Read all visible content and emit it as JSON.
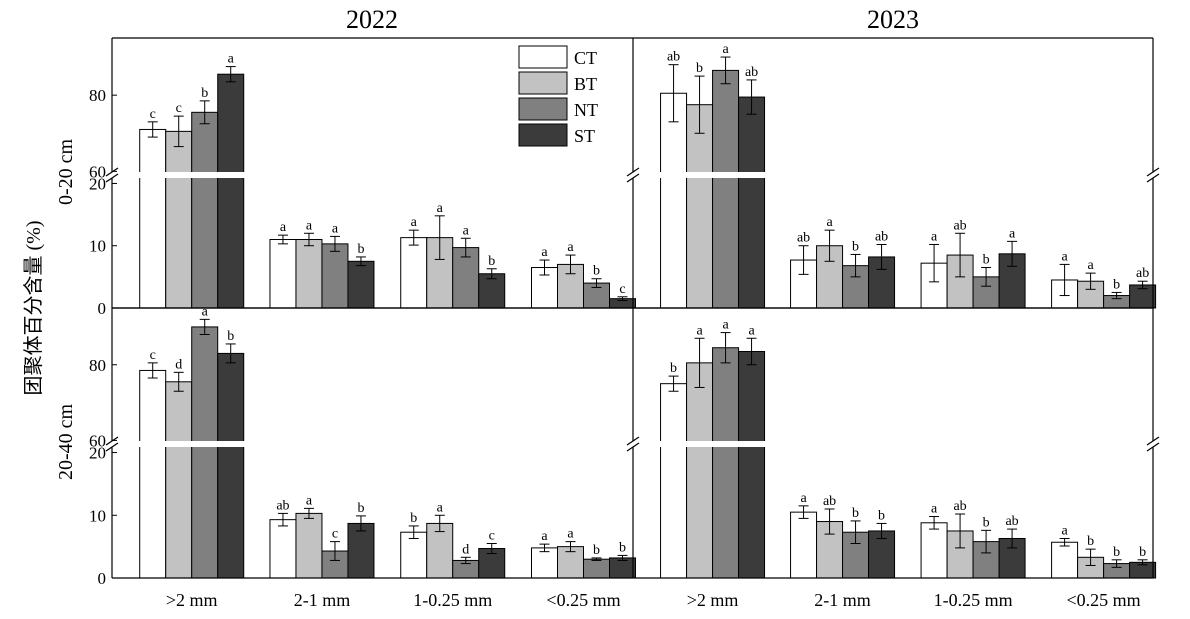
{
  "figure": {
    "y_axis_label": "团聚体百分含量 (%)",
    "row_labels": [
      "0-20 cm",
      "20-40 cm"
    ],
    "col_titles": [
      "2022",
      "2023"
    ]
  },
  "chart_data": {
    "type": "bar",
    "categories": [
      ">2 mm",
      "2-1 mm",
      "1-0.25 mm",
      "<0.25 mm"
    ],
    "ylabel": "团聚体百分含量 (%)",
    "broken_y_axis": {
      "lower_range": [
        0,
        22
      ],
      "upper_range": [
        58,
        95
      ]
    },
    "legend": {
      "entries": [
        "CT",
        "BT",
        "NT",
        "ST"
      ],
      "placement": "top-right of first panel"
    },
    "series_colors": {
      "CT": "#ffffff",
      "BT": "#c2c2c2",
      "NT": "#808080",
      "ST": "#3b3b3b"
    },
    "panels": [
      {
        "year": "2022",
        "depth": "0-20 cm",
        "series": [
          {
            "name": "CT",
            "values": [
              71.0,
              11.0,
              11.3,
              6.5
            ],
            "errors": [
              2.0,
              0.7,
              1.2,
              1.2
            ],
            "letters": [
              "c",
              "a",
              "a",
              "a"
            ]
          },
          {
            "name": "BT",
            "values": [
              70.5,
              11.0,
              11.3,
              7.0
            ],
            "errors": [
              4.0,
              1.0,
              3.5,
              1.5
            ],
            "letters": [
              "c",
              "a",
              "a",
              "a"
            ]
          },
          {
            "name": "NT",
            "values": [
              75.5,
              10.3,
              9.7,
              4.0
            ],
            "errors": [
              3.0,
              1.2,
              1.5,
              0.7
            ],
            "letters": [
              "b",
              "a",
              "a",
              "b"
            ]
          },
          {
            "name": "ST",
            "values": [
              85.5,
              7.5,
              5.5,
              1.5
            ],
            "errors": [
              2.0,
              0.7,
              0.8,
              0.3
            ],
            "letters": [
              "a",
              "b",
              "b",
              "c"
            ]
          }
        ]
      },
      {
        "year": "2023",
        "depth": "0-20 cm",
        "series": [
          {
            "name": "CT",
            "values": [
              80.5,
              7.7,
              7.2,
              4.5
            ],
            "errors": [
              7.5,
              2.3,
              3.0,
              2.5
            ],
            "letters": [
              "ab",
              "ab",
              "a",
              "a"
            ]
          },
          {
            "name": "BT",
            "values": [
              77.5,
              10.0,
              8.5,
              4.3
            ],
            "errors": [
              7.5,
              2.5,
              3.5,
              1.3
            ],
            "letters": [
              "b",
              "a",
              "ab",
              "a"
            ]
          },
          {
            "name": "NT",
            "values": [
              86.5,
              6.8,
              5.0,
              2.0
            ],
            "errors": [
              3.5,
              1.8,
              1.5,
              0.5
            ],
            "letters": [
              "a",
              "b",
              "b",
              "b"
            ]
          },
          {
            "name": "ST",
            "values": [
              79.5,
              8.2,
              8.7,
              3.7
            ],
            "errors": [
              4.5,
              2.0,
              2.0,
              0.6
            ],
            "letters": [
              "ab",
              "ab",
              "a",
              "ab"
            ]
          }
        ]
      },
      {
        "year": "2022",
        "depth": "20-40 cm",
        "series": [
          {
            "name": "CT",
            "values": [
              78.5,
              9.3,
              7.3,
              4.8
            ],
            "errors": [
              2.0,
              1.0,
              1.0,
              0.6
            ],
            "letters": [
              "c",
              "ab",
              "b",
              "a"
            ]
          },
          {
            "name": "BT",
            "values": [
              75.5,
              10.3,
              8.7,
              5.0
            ],
            "errors": [
              2.5,
              0.8,
              1.3,
              0.8
            ],
            "letters": [
              "d",
              "a",
              "a",
              "a"
            ]
          },
          {
            "name": "NT",
            "values": [
              90.0,
              4.3,
              2.8,
              3.0
            ],
            "errors": [
              2.0,
              1.5,
              0.5,
              0.2
            ],
            "letters": [
              "a",
              "c",
              "d",
              "b"
            ]
          },
          {
            "name": "ST",
            "values": [
              83.0,
              8.7,
              4.7,
              3.2
            ],
            "errors": [
              2.5,
              1.2,
              0.8,
              0.4
            ],
            "letters": [
              "b",
              "b",
              "c",
              "b"
            ]
          }
        ]
      },
      {
        "year": "2023",
        "depth": "20-40 cm",
        "series": [
          {
            "name": "CT",
            "values": [
              75.0,
              10.5,
              8.8,
              5.7
            ],
            "errors": [
              2.0,
              1.0,
              1.0,
              0.6
            ],
            "letters": [
              "b",
              "a",
              "a",
              "a"
            ]
          },
          {
            "name": "BT",
            "values": [
              80.5,
              9.0,
              7.5,
              3.3
            ],
            "errors": [
              6.5,
              2.0,
              2.7,
              1.3
            ],
            "letters": [
              "a",
              "ab",
              "ab",
              "b"
            ]
          },
          {
            "name": "NT",
            "values": [
              84.5,
              7.3,
              5.8,
              2.3
            ],
            "errors": [
              4.0,
              1.8,
              1.8,
              0.6
            ],
            "letters": [
              "a",
              "b",
              "b",
              "b"
            ]
          },
          {
            "name": "ST",
            "values": [
              83.5,
              7.5,
              6.3,
              2.5
            ],
            "errors": [
              3.5,
              1.2,
              1.5,
              0.4
            ],
            "letters": [
              "a",
              "b",
              "ab",
              "b"
            ]
          }
        ]
      }
    ]
  }
}
